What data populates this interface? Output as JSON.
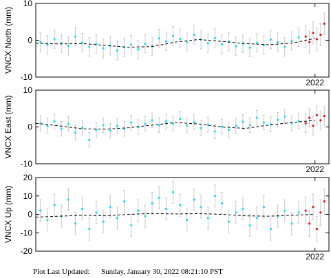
{
  "footer": {
    "label": "Plot Last Updated:",
    "date": "Sunday, January 30, 2022 08:21:10 PST"
  },
  "chart_data": [
    {
      "type": "scatter",
      "ylabel": "VNCX North (mm)",
      "xlim": [
        2019.0,
        2022.15
      ],
      "ylim": [
        -10,
        10
      ],
      "yticks": [
        -10,
        0,
        10
      ],
      "xticks": [
        2022
      ],
      "series": [
        {
          "color": "#22ddee",
          "x": [
            2019.05,
            2019.125,
            2019.2,
            2019.275,
            2019.35,
            2019.425,
            2019.5,
            2019.575,
            2019.65,
            2019.725,
            2019.8,
            2019.875,
            2019.95,
            2020.025,
            2020.1,
            2020.175,
            2020.25,
            2020.325,
            2020.4,
            2020.475,
            2020.55,
            2020.625,
            2020.7,
            2020.775,
            2020.85,
            2020.925,
            2021.0,
            2021.075,
            2021.15,
            2021.225,
            2021.3,
            2021.375,
            2021.45,
            2021.525,
            2021.6,
            2021.675,
            2021.75,
            2021.825
          ],
          "values": [
            -0.5,
            -1.2,
            0.3,
            -0.8,
            -1.5,
            1.0,
            -0.6,
            -1.8,
            -1.0,
            -2.2,
            -1.5,
            -2.8,
            -1.9,
            -1.2,
            -2.5,
            -0.9,
            -1.6,
            0.5,
            -0.3,
            1.2,
            0.4,
            -0.5,
            1.5,
            0.2,
            -0.8,
            0.6,
            -1.1,
            -0.4,
            -1.6,
            -0.9,
            -2.0,
            -0.7,
            -1.3,
            0.2,
            -0.5,
            -1.8,
            -0.2,
            0.8
          ],
          "errors": [
            2.5,
            2.5,
            2.5,
            2.5,
            2.5,
            2.5,
            2.5,
            2.5,
            2.5,
            2.5,
            2.5,
            2.5,
            2.5,
            2.5,
            2.5,
            2.5,
            2.5,
            2.5,
            2.5,
            2.5,
            2.5,
            2.5,
            2.5,
            2.5,
            2.5,
            2.5,
            2.5,
            2.5,
            2.5,
            2.5,
            2.5,
            2.5,
            2.5,
            2.5,
            2.5,
            2.5,
            2.5,
            2.5
          ]
        },
        {
          "color": "#ee1111",
          "x": [
            2021.9,
            2021.94,
            2021.98,
            2022.02,
            2022.06,
            2022.1
          ],
          "values": [
            1.0,
            -0.5,
            2.0,
            0.3,
            1.5,
            4.5
          ],
          "errors": [
            3,
            3,
            3,
            3,
            3,
            3
          ]
        },
        {
          "color": "#000000",
          "dashed": true,
          "x": [
            2019.0,
            2019.25,
            2019.5,
            2019.75,
            2020.0,
            2020.25,
            2020.5,
            2020.75,
            2021.0,
            2021.25,
            2021.5,
            2021.75,
            2022.0
          ],
          "values": [
            -0.8,
            -1.0,
            -0.9,
            -1.4,
            -1.9,
            -1.7,
            -0.5,
            0.2,
            -0.3,
            -0.9,
            -1.2,
            -0.8,
            0.5
          ]
        }
      ]
    },
    {
      "type": "scatter",
      "ylabel": "VNCX East (mm)",
      "xlim": [
        2019.0,
        2022.15
      ],
      "ylim": [
        -10,
        10
      ],
      "yticks": [
        -10,
        0,
        10
      ],
      "xticks": [
        2022
      ],
      "series": [
        {
          "color": "#22ddee",
          "x": [
            2019.05,
            2019.125,
            2019.2,
            2019.275,
            2019.35,
            2019.425,
            2019.5,
            2019.575,
            2019.65,
            2019.725,
            2019.8,
            2019.875,
            2019.95,
            2020.025,
            2020.1,
            2020.175,
            2020.25,
            2020.325,
            2020.4,
            2020.475,
            2020.55,
            2020.625,
            2020.7,
            2020.775,
            2020.85,
            2020.925,
            2021.0,
            2021.075,
            2021.15,
            2021.225,
            2021.3,
            2021.375,
            2021.45,
            2021.525,
            2021.6,
            2021.675,
            2021.75,
            2021.825
          ],
          "values": [
            1.0,
            0.3,
            1.5,
            -0.5,
            0.8,
            -1.5,
            -0.2,
            -3.5,
            -0.8,
            0.5,
            -1.0,
            0.2,
            -0.5,
            1.2,
            0.0,
            0.8,
            1.8,
            0.5,
            1.5,
            0.9,
            2.2,
            0.4,
            1.3,
            -0.3,
            0.6,
            -1.2,
            0.1,
            -0.8,
            0.3,
            1.4,
            0.5,
            2.5,
            1.2,
            0.7,
            1.9,
            2.8,
            1.0,
            1.6
          ],
          "errors": [
            2,
            2,
            2,
            2,
            2,
            2,
            2,
            2,
            2,
            2,
            2,
            2,
            2,
            2,
            2,
            2,
            2,
            2,
            2,
            2,
            2,
            2,
            2,
            2,
            2,
            2,
            2,
            2,
            2,
            2,
            2,
            2,
            2,
            2,
            2,
            2,
            2,
            2
          ]
        },
        {
          "color": "#ee1111",
          "x": [
            2021.9,
            2021.94,
            2021.98,
            2022.02,
            2022.06,
            2022.1
          ],
          "values": [
            1.0,
            2.5,
            0.3,
            3.2,
            1.8,
            3.0
          ],
          "errors": [
            2.5,
            2.5,
            2.5,
            2.5,
            2.5,
            2.5
          ]
        },
        {
          "color": "#000000",
          "dashed": true,
          "x": [
            2019.0,
            2019.25,
            2019.5,
            2019.75,
            2020.0,
            2020.25,
            2020.5,
            2020.75,
            2021.0,
            2021.25,
            2021.5,
            2021.75,
            2022.0
          ],
          "values": [
            1.0,
            0.3,
            -0.5,
            -0.6,
            -0.2,
            0.5,
            1.2,
            0.8,
            0.0,
            -0.4,
            0.5,
            1.2,
            1.8
          ]
        }
      ]
    },
    {
      "type": "scatter",
      "ylabel": "VNCX Up (mm)",
      "xlim": [
        2019.0,
        2022.15
      ],
      "ylim": [
        -20,
        20
      ],
      "yticks": [
        -20,
        -10,
        0,
        10,
        20
      ],
      "xticks": [
        2022
      ],
      "series": [
        {
          "color": "#22ddee",
          "x": [
            2019.05,
            2019.125,
            2019.2,
            2019.275,
            2019.35,
            2019.425,
            2019.5,
            2019.575,
            2019.65,
            2019.725,
            2019.8,
            2019.875,
            2019.95,
            2020.025,
            2020.1,
            2020.175,
            2020.25,
            2020.325,
            2020.4,
            2020.475,
            2020.55,
            2020.625,
            2020.7,
            2020.775,
            2020.85,
            2020.925,
            2021.0,
            2021.075,
            2021.15,
            2021.225,
            2021.3,
            2021.375,
            2021.45,
            2021.525,
            2021.6,
            2021.675,
            2021.75,
            2021.825
          ],
          "values": [
            2.0,
            -3.0,
            5.0,
            -1.0,
            8.0,
            -5.0,
            3.0,
            -8.0,
            1.0,
            -4.0,
            4.0,
            -2.0,
            7.0,
            -6.0,
            2.0,
            -1.0,
            6.0,
            9.0,
            3.0,
            12.0,
            5.0,
            -3.0,
            8.0,
            4.0,
            -2.0,
            10.0,
            6.0,
            -4.0,
            1.0,
            3.0,
            -6.0,
            -2.0,
            4.0,
            -8.0,
            -1.0,
            2.0,
            -5.0,
            1.0
          ],
          "errors": [
            6,
            6,
            6,
            6,
            6,
            6,
            6,
            6,
            6,
            6,
            6,
            6,
            6,
            6,
            6,
            6,
            6,
            6,
            6,
            6,
            6,
            6,
            6,
            6,
            6,
            6,
            6,
            6,
            6,
            6,
            6,
            6,
            6,
            6,
            6,
            6,
            6,
            6
          ]
        },
        {
          "color": "#ee1111",
          "x": [
            2021.9,
            2021.94,
            2021.98,
            2022.02,
            2022.06,
            2022.1
          ],
          "values": [
            2.0,
            -5.0,
            4.0,
            -8.0,
            1.0,
            7.0
          ],
          "errors": [
            7,
            7,
            7,
            7,
            7,
            7
          ]
        },
        {
          "color": "#000000",
          "dashed": true,
          "x": [
            2019.0,
            2019.25,
            2019.5,
            2019.75,
            2020.0,
            2020.25,
            2020.5,
            2020.75,
            2021.0,
            2021.25,
            2021.5,
            2021.75,
            2022.0
          ],
          "values": [
            -1.5,
            -1.0,
            -0.5,
            -0.8,
            0.0,
            0.5,
            0.2,
            0.4,
            0.0,
            -0.8,
            -1.0,
            -0.5,
            0.0
          ]
        }
      ]
    }
  ]
}
